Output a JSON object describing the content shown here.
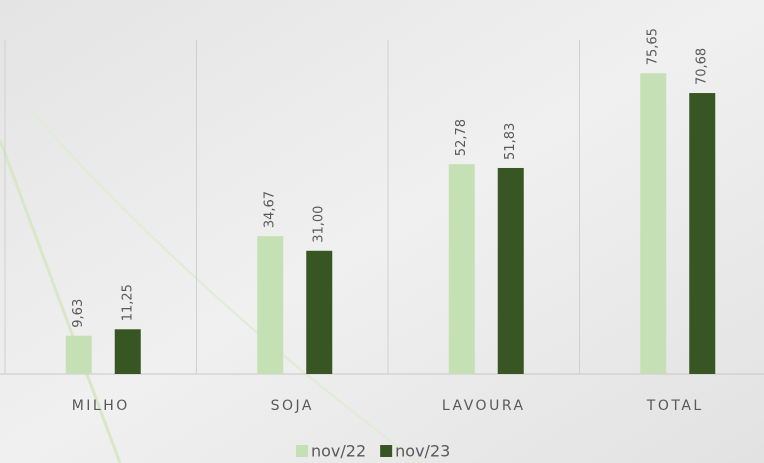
{
  "chart_data": {
    "type": "bar",
    "categories": [
      "MILHO",
      "SOJA",
      "LAVOURA",
      "TOTAL"
    ],
    "series": [
      {
        "name": "nov/22",
        "color": "#c5e0b4",
        "values": [
          9.63,
          34.67,
          52.78,
          75.65
        ],
        "value_labels": [
          "9,63",
          "34,67",
          "52,78",
          "75,65"
        ]
      },
      {
        "name": "nov/23",
        "color": "#375623",
        "values": [
          11.25,
          31.0,
          51.83,
          70.68
        ],
        "value_labels": [
          "11,25",
          "31,00",
          "51,83",
          "70,68"
        ]
      }
    ],
    "ylim": [
      0,
      80
    ],
    "legend": "bottom"
  }
}
